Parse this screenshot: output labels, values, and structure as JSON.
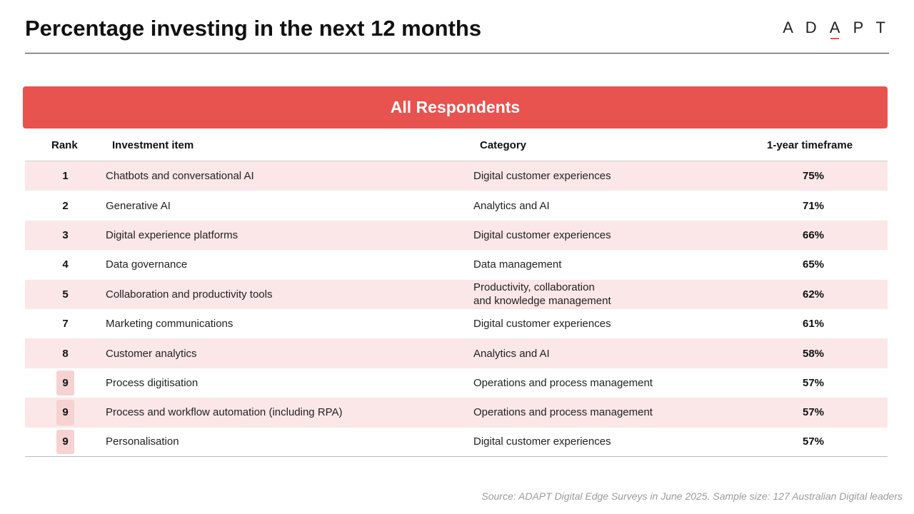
{
  "title": "Percentage investing in the next 12 months",
  "logo": "ADAPT",
  "banner": "All Respondents",
  "columns": {
    "rank": "Rank",
    "item": "Investment item",
    "category": "Category",
    "timeframe": "1-year timeframe"
  },
  "rows": [
    {
      "rank": "1",
      "item": "Chatbots and conversational AI",
      "category": "Digital customer experiences",
      "pct": "75%"
    },
    {
      "rank": "2",
      "item": "Generative AI",
      "category": "Analytics and AI",
      "pct": "71%"
    },
    {
      "rank": "3",
      "item": "Digital experience platforms",
      "category": "Digital customer experiences",
      "pct": "66%"
    },
    {
      "rank": "4",
      "item": "Data governance",
      "category": "Data management",
      "pct": "65%"
    },
    {
      "rank": "5",
      "item": "Collaboration and productivity tools",
      "category": "Productivity, collaboration\nand knowledge management",
      "pct": "62%"
    },
    {
      "rank": "7",
      "item": "Marketing communications",
      "category": "Digital customer experiences",
      "pct": "61%"
    },
    {
      "rank": "8",
      "item": "Customer analytics",
      "category": "Analytics and AI",
      "pct": "58%"
    },
    {
      "rank": "9",
      "item": "Process digitisation",
      "category": "Operations and process management",
      "pct": "57%"
    },
    {
      "rank": "9",
      "item": "Process and workflow automation (including RPA)",
      "category": "Operations and process management",
      "pct": "57%"
    },
    {
      "rank": "9",
      "item": "Personalisation",
      "category": "Digital customer experiences",
      "pct": "57%"
    }
  ],
  "source": "Source: ADAPT Digital Edge Surveys in June 2025. Sample size: 127 Australian Digital leaders",
  "colors": {
    "accent": "#e8524f",
    "row_shade": "#fbe7e7",
    "tie_highlight": "#f6d2d2"
  }
}
